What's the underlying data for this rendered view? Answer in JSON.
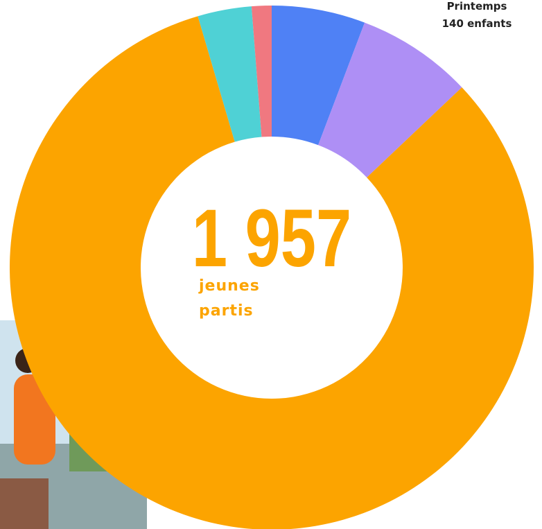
{
  "chart_data": {
    "type": "donut",
    "categories": [
      null,
      "Printemps",
      null,
      null,
      null
    ],
    "values": [
      113,
      140,
      1615,
      65,
      24
    ],
    "value_labels": [
      null,
      "140 enfants",
      null,
      null,
      null
    ],
    "colors": [
      "#4f81f5",
      "#ae8ff5",
      "#fca400",
      "#4fd1d5",
      "#f07880"
    ],
    "center_value": "1 957",
    "center_text": [
      "jeunes",
      "partis"
    ]
  }
}
